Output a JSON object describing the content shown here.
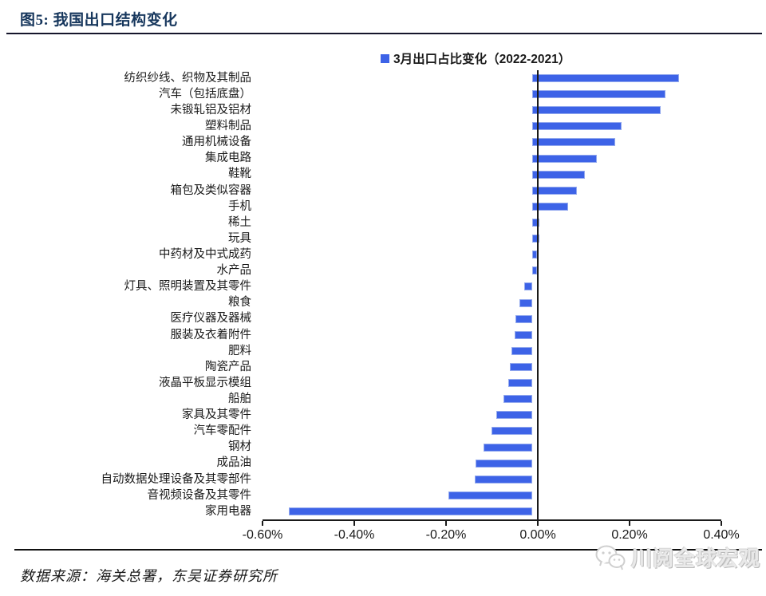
{
  "header": {
    "title": "图5:  我国出口结构变化"
  },
  "legend": {
    "label": "3月出口占比变化（2022-2021）",
    "swatch_color": "#3D63E7"
  },
  "chart_data": {
    "type": "bar",
    "orientation": "horizontal",
    "title": "3月出口占比变化（2022-2021）",
    "unit": "%",
    "bar_color": "#3D63E7",
    "grid": false,
    "legend_position": "top-center",
    "xlim": [
      -0.6,
      0.4
    ],
    "x_ticks": [
      "-0.60%",
      "-0.40%",
      "-0.20%",
      "0.00%",
      "0.20%",
      "0.40%"
    ],
    "categories": [
      "纺织纱线、织物及其制品",
      "汽车（包括底盘）",
      "未锻轧铝及铝材",
      "塑料制品",
      "通用机械设备",
      "集成电路",
      "鞋靴",
      "箱包及类似容器",
      "手机",
      "稀土",
      "玩具",
      "中药材及中式成药",
      "水产品",
      "灯具、照明装置及其零件",
      "粮食",
      "医疗仪器及器械",
      "服装及衣着附件",
      "肥料",
      "陶瓷产品",
      "液晶平板显示模组",
      "船舶",
      "家具及其零件",
      "汽车零配件",
      "钢材",
      "成品油",
      "自动数据处理设备及其零部件",
      "音视频设备及其零件",
      "家用电器"
    ],
    "values": [
      0.32,
      0.29,
      0.28,
      0.195,
      0.18,
      0.14,
      0.115,
      0.097,
      0.079,
      0.015,
      0.015,
      0.011,
      0.01,
      -0.017,
      -0.027,
      -0.036,
      -0.039,
      -0.045,
      -0.048,
      -0.052,
      -0.063,
      -0.079,
      -0.088,
      -0.106,
      -0.123,
      -0.125,
      -0.182,
      -0.53
    ]
  },
  "footer": {
    "source": "数据来源：海关总署，东吴证券研究所",
    "watermark": "川阅全球宏观"
  }
}
